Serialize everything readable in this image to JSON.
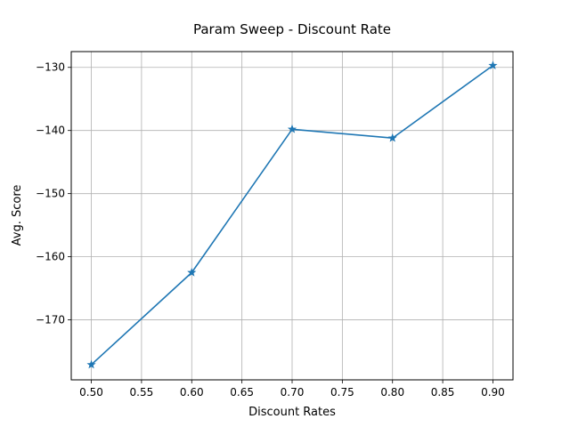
{
  "chart_data": {
    "type": "line",
    "title": "Param Sweep - Discount Rate",
    "xlabel": "Discount Rates",
    "ylabel": "Avg. Score",
    "x": [
      0.5,
      0.6,
      0.7,
      0.8,
      0.9
    ],
    "series": [
      {
        "values": [
          -177.1,
          -162.5,
          -139.8,
          -141.2,
          -129.7
        ],
        "color": "#1f77b4",
        "marker": "star"
      }
    ],
    "xlim": [
      0.48,
      0.92
    ],
    "ylim": [
      -179.5,
      -127.5
    ],
    "xticks": [
      0.5,
      0.55,
      0.6,
      0.65,
      0.7,
      0.75,
      0.8,
      0.85,
      0.9
    ],
    "xtick_labels": [
      "0.50",
      "0.55",
      "0.60",
      "0.65",
      "0.70",
      "0.75",
      "0.80",
      "0.85",
      "0.90"
    ],
    "yticks": [
      -170,
      -160,
      -150,
      -140,
      -130
    ],
    "ytick_labels": [
      "−170",
      "−160",
      "−150",
      "−140",
      "−130"
    ],
    "grid": true,
    "legend": false
  }
}
